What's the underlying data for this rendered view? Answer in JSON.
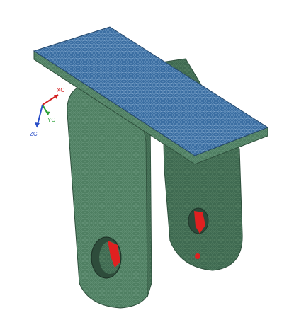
{
  "viewport": {
    "background_color": "#ffffff",
    "model": {
      "plate_mesh_color": "#3b6fa0",
      "body_mesh_color": "#4b7a5e",
      "stress_hotspot_color": "#e02020"
    }
  },
  "triad": {
    "x_label": "XC",
    "y_label": "YC",
    "z_label": "ZC",
    "x_color": "#d42020",
    "y_color": "#2fa23a",
    "z_color": "#2a4fc8"
  }
}
